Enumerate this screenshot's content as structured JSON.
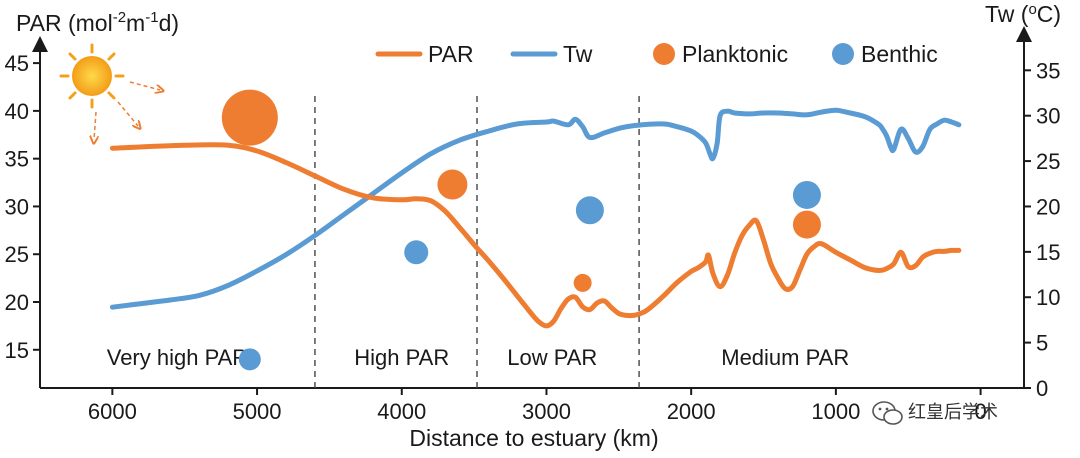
{
  "chart_data": {
    "type": "line",
    "title": "",
    "xlabel": "Distance to estuary (km)",
    "xlim": [
      6500,
      -300
    ],
    "x_ticks": [
      6000,
      5000,
      4000,
      3000,
      2000,
      1000,
      0
    ],
    "x_tick_labels": [
      "6000",
      "5000",
      "4000",
      "3000",
      "2000",
      "1000",
      "0"
    ],
    "left_axis": {
      "label": "PAR (mol",
      "label_sup1": "-2",
      "label_mid": "m",
      "label_sup2": "-1",
      "label_end": "d)",
      "ylim": [
        11,
        47
      ],
      "ticks": [
        15,
        20,
        25,
        30,
        35,
        40,
        45
      ]
    },
    "right_axis": {
      "label": "Tw (",
      "label_sup": "o",
      "label_end": "C)",
      "ylim": [
        0,
        39
      ],
      "ticks": [
        0,
        5,
        10,
        15,
        20,
        25,
        30,
        35
      ]
    },
    "series": [
      {
        "name": "PAR",
        "axis": "left",
        "color": "#ee7d31",
        "x": [
          6000,
          5500,
          5200,
          5000,
          4800,
          4600,
          4400,
          4200,
          4000,
          3900,
          3800,
          3700,
          3600,
          3500,
          3400,
          3300,
          3200,
          3100,
          3050,
          3000,
          2950,
          2900,
          2850,
          2800,
          2750,
          2700,
          2650,
          2600,
          2550,
          2500,
          2450,
          2400,
          2350,
          2300,
          2200,
          2100,
          2000,
          1950,
          1900,
          1880,
          1850,
          1800,
          1750,
          1700,
          1650,
          1600,
          1550,
          1500,
          1450,
          1400,
          1350,
          1300,
          1250,
          1200,
          1150,
          1100,
          1000,
          900,
          800,
          700,
          650,
          600,
          550,
          500,
          450,
          400,
          350,
          300,
          250,
          200,
          150
        ],
        "values": [
          36.1,
          36.4,
          36.4,
          35.8,
          34.6,
          33.2,
          31.8,
          30.9,
          30.7,
          30.8,
          30.6,
          29.5,
          27.8,
          26.0,
          24.3,
          22.5,
          20.6,
          18.7,
          17.9,
          17.5,
          18.0,
          19.3,
          20.3,
          20.5,
          19.5,
          19.2,
          19.9,
          20.1,
          19.4,
          18.8,
          18.6,
          18.6,
          18.8,
          19.2,
          20.5,
          22.0,
          23.2,
          23.6,
          24.2,
          24.9,
          23.0,
          21.6,
          22.8,
          25.1,
          26.9,
          28.0,
          28.5,
          26.5,
          24.0,
          22.5,
          21.4,
          21.6,
          23.3,
          25.0,
          25.8,
          26.1,
          25.2,
          24.4,
          23.6,
          23.3,
          23.5,
          24.0,
          25.2,
          23.7,
          23.8,
          24.7,
          25.1,
          25.3,
          25.3,
          25.4,
          25.4
        ]
      },
      {
        "name": "Tw",
        "axis": "right",
        "color": "#5a9bd3",
        "x": [
          6000,
          5800,
          5600,
          5400,
          5200,
          5000,
          4800,
          4600,
          4400,
          4200,
          4000,
          3800,
          3600,
          3400,
          3200,
          3000,
          2950,
          2850,
          2800,
          2750,
          2700,
          2600,
          2500,
          2400,
          2200,
          2100,
          2000,
          1950,
          1900,
          1870,
          1850,
          1820,
          1800,
          1750,
          1700,
          1600,
          1500,
          1400,
          1300,
          1200,
          1100,
          1000,
          900,
          800,
          750,
          700,
          680,
          650,
          620,
          600,
          550,
          500,
          450,
          400,
          350,
          300,
          250,
          200,
          150
        ],
        "values": [
          8.9,
          9.3,
          9.7,
          10.2,
          11.3,
          12.9,
          14.7,
          16.8,
          19.1,
          21.4,
          23.7,
          25.8,
          27.3,
          28.3,
          29.1,
          29.3,
          29.4,
          29.0,
          29.6,
          28.8,
          27.6,
          28.1,
          28.6,
          28.9,
          29.1,
          28.8,
          28.3,
          27.8,
          27.0,
          25.8,
          25.3,
          27.0,
          30.0,
          30.5,
          30.3,
          30.2,
          30.3,
          30.3,
          30.2,
          30.1,
          30.4,
          30.6,
          30.3,
          29.9,
          29.5,
          29.0,
          28.6,
          27.8,
          26.5,
          26.3,
          28.5,
          27.5,
          26.0,
          26.6,
          28.5,
          29.1,
          29.5,
          29.3,
          29.0
        ]
      }
    ],
    "scatter": [
      {
        "name": "Planktonic",
        "color": "#ee7d31",
        "points": [
          {
            "x": 5050,
            "y": 39.3,
            "size": 28
          },
          {
            "x": 3650,
            "y": 32.3,
            "size": 15
          },
          {
            "x": 2750,
            "y": 22.0,
            "size": 9
          },
          {
            "x": 1200,
            "y": 28.1,
            "size": 14
          }
        ]
      },
      {
        "name": "Benthic",
        "color": "#5a9bd3",
        "points": [
          {
            "x": 5050,
            "y": 14.0,
            "size": 11
          },
          {
            "x": 3900,
            "y": 25.2,
            "size": 12
          },
          {
            "x": 2700,
            "y": 29.6,
            "size": 14
          },
          {
            "x": 1200,
            "y": 31.2,
            "size": 14
          }
        ]
      }
    ],
    "regions": [
      {
        "label": "Very high PAR",
        "center": 5550
      },
      {
        "label": "High PAR",
        "center": 4000
      },
      {
        "label": "Low PAR",
        "center": 2960
      },
      {
        "label": "Medium PAR",
        "center": 1350
      }
    ],
    "dividers": [
      4600,
      3480,
      2360
    ],
    "legend": {
      "position": "top-right",
      "items": [
        {
          "label": "PAR",
          "kind": "line",
          "color": "#ee7d31"
        },
        {
          "label": "Tw",
          "kind": "line",
          "color": "#5a9bd3"
        },
        {
          "label": "Planktonic",
          "kind": "dot",
          "color": "#ee7d31"
        },
        {
          "label": "Benthic",
          "kind": "dot",
          "color": "#5a9bd3"
        }
      ]
    }
  },
  "watermark": "红皇后学术",
  "icons": {
    "sun": "sun-icon",
    "watermark": "wechat-icon"
  }
}
